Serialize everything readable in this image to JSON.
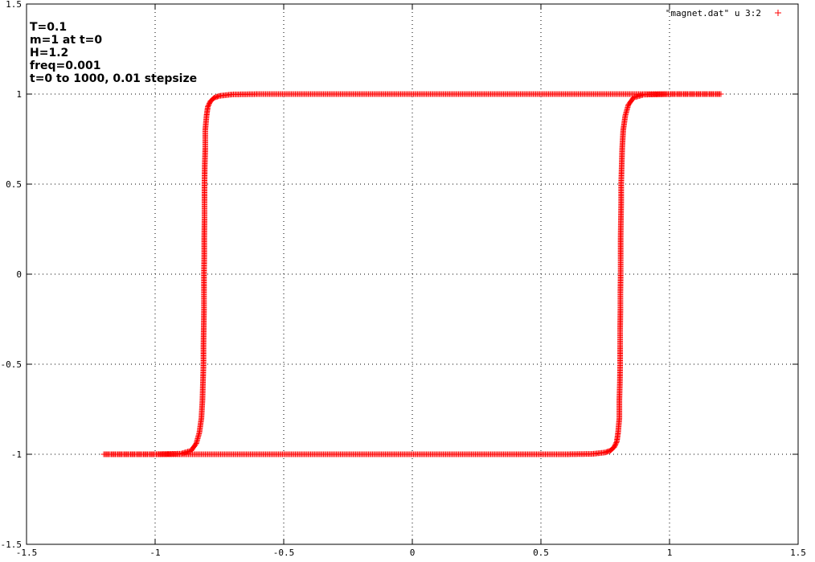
{
  "chart_data": {
    "type": "scatter",
    "title": "",
    "xlabel": "",
    "ylabel": "",
    "xlim": [
      -1.5,
      1.5
    ],
    "ylim": [
      -1.5,
      1.5
    ],
    "grid": true,
    "legend_placement": "top-right",
    "x_ticks": [
      -1.5,
      -1,
      -0.5,
      0,
      0.5,
      1,
      1.5
    ],
    "x_tick_labels": [
      "-1.5",
      "-1",
      "-0.5",
      "0",
      "0.5",
      "1",
      "1.5"
    ],
    "y_ticks": [
      -1.5,
      -1,
      -0.5,
      0,
      0.5,
      1,
      1.5
    ],
    "y_tick_labels": [
      "-1.5",
      "-1",
      "-0.5",
      "0",
      "0.5",
      "1",
      "1.5"
    ],
    "annotations": [
      "T=0.1",
      "m=1 at t=0",
      "H=1.2",
      "freq=0.001",
      "t=0 to 1000, 0.01 stepsize"
    ],
    "series": [
      {
        "name": "\"magnet.dat\" u 3:2",
        "marker": "+",
        "color": "#ff0000",
        "branches": [
          {
            "direction": "decreasing field",
            "points": [
              [
                1.2,
                1.0
              ],
              [
                0.8,
                1.0
              ],
              [
                0.4,
                1.0
              ],
              [
                0.0,
                1.0
              ],
              [
                -0.4,
                1.0
              ],
              [
                -0.6,
                1.0
              ],
              [
                -0.7,
                0.998
              ],
              [
                -0.75,
                0.99
              ],
              [
                -0.77,
                0.98
              ],
              [
                -0.785,
                0.96
              ],
              [
                -0.795,
                0.93
              ],
              [
                -0.8,
                0.88
              ],
              [
                -0.805,
                0.8
              ],
              [
                -0.805,
                0.7
              ],
              [
                -0.807,
                0.6
              ],
              [
                -0.808,
                0.5
              ],
              [
                -0.808,
                0.4
              ],
              [
                -0.808,
                0.3
              ],
              [
                -0.809,
                0.2
              ],
              [
                -0.809,
                0.1
              ],
              [
                -0.81,
                0.0
              ],
              [
                -0.81,
                -0.1
              ],
              [
                -0.81,
                -0.2
              ],
              [
                -0.811,
                -0.3
              ],
              [
                -0.812,
                -0.4
              ],
              [
                -0.812,
                -0.5
              ],
              [
                -0.814,
                -0.6
              ],
              [
                -0.816,
                -0.7
              ],
              [
                -0.82,
                -0.8
              ],
              [
                -0.828,
                -0.88
              ],
              [
                -0.84,
                -0.94
              ],
              [
                -0.86,
                -0.98
              ],
              [
                -0.9,
                -0.997
              ],
              [
                -1.0,
                -1.0
              ],
              [
                -1.2,
                -1.0
              ]
            ]
          },
          {
            "direction": "increasing field",
            "points": [
              [
                -1.2,
                -1.0
              ],
              [
                -0.8,
                -1.0
              ],
              [
                -0.4,
                -1.0
              ],
              [
                0.0,
                -1.0
              ],
              [
                0.4,
                -1.0
              ],
              [
                0.6,
                -1.0
              ],
              [
                0.7,
                -0.998
              ],
              [
                0.75,
                -0.99
              ],
              [
                0.77,
                -0.98
              ],
              [
                0.785,
                -0.96
              ],
              [
                0.795,
                -0.93
              ],
              [
                0.8,
                -0.88
              ],
              [
                0.805,
                -0.8
              ],
              [
                0.805,
                -0.7
              ],
              [
                0.807,
                -0.6
              ],
              [
                0.808,
                -0.5
              ],
              [
                0.808,
                -0.4
              ],
              [
                0.808,
                -0.3
              ],
              [
                0.809,
                -0.2
              ],
              [
                0.809,
                -0.1
              ],
              [
                0.81,
                0.0
              ],
              [
                0.81,
                0.1
              ],
              [
                0.81,
                0.2
              ],
              [
                0.811,
                0.3
              ],
              [
                0.812,
                0.4
              ],
              [
                0.812,
                0.5
              ],
              [
                0.814,
                0.6
              ],
              [
                0.816,
                0.7
              ],
              [
                0.82,
                0.8
              ],
              [
                0.828,
                0.88
              ],
              [
                0.84,
                0.94
              ],
              [
                0.86,
                0.98
              ],
              [
                0.9,
                0.997
              ],
              [
                1.0,
                1.0
              ],
              [
                1.2,
                1.0
              ]
            ]
          }
        ]
      }
    ]
  }
}
